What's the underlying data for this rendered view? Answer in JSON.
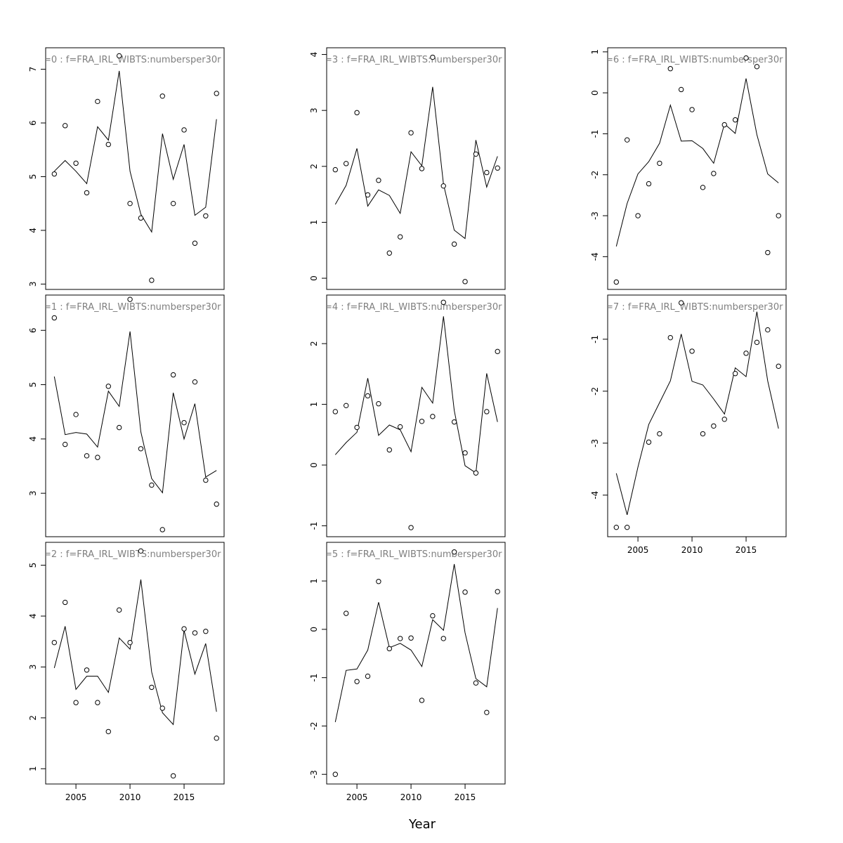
{
  "chart_data": {
    "type": "line",
    "xlabel": "Year",
    "x": [
      2003,
      2004,
      2005,
      2006,
      2007,
      2008,
      2009,
      2010,
      2011,
      2012,
      2013,
      2014,
      2015,
      2016,
      2017,
      2018
    ],
    "x_ticks": [
      2005,
      2010,
      2015
    ],
    "panels": [
      {
        "title": "=0  :  f=FRA_IRL_WIBTS:numbersper30r",
        "yticks": [
          3,
          4,
          5,
          6,
          7
        ],
        "ylim": [
          2.9,
          7.4
        ],
        "fitted": [
          5.1,
          5.3,
          5.1,
          4.87,
          5.93,
          5.68,
          6.97,
          5.1,
          4.3,
          3.97,
          5.8,
          4.95,
          5.6,
          4.28,
          4.43,
          6.07
        ],
        "observed": [
          5.05,
          5.95,
          5.25,
          4.7,
          6.4,
          5.6,
          7.25,
          4.5,
          4.23,
          3.07,
          6.5,
          4.5,
          5.87,
          3.76,
          4.27,
          6.55
        ]
      },
      {
        "title": "=1  :  f=FRA_IRL_WIBTS:numbersper30r",
        "yticks": [
          3,
          4,
          5,
          6
        ],
        "ylim": [
          2.2,
          6.65
        ],
        "fitted": [
          5.15,
          4.08,
          4.12,
          4.09,
          3.85,
          4.88,
          4.6,
          5.98,
          4.13,
          3.27,
          3.01,
          4.85,
          4.0,
          4.65,
          3.3,
          3.42
        ],
        "observed": [
          6.23,
          3.9,
          4.45,
          3.69,
          3.66,
          4.97,
          4.21,
          6.57,
          3.82,
          3.15,
          2.33,
          5.18,
          4.3,
          5.05,
          3.24,
          2.8
        ]
      },
      {
        "title": "=2  :  f=FRA_IRL_WIBTS:numbersper30r",
        "yticks": [
          1,
          2,
          3,
          4,
          5
        ],
        "ylim": [
          0.7,
          5.45
        ],
        "fitted": [
          2.98,
          3.8,
          2.56,
          2.82,
          2.82,
          2.5,
          3.57,
          3.35,
          4.72,
          2.9,
          2.1,
          1.87,
          3.72,
          2.86,
          3.46,
          2.12
        ],
        "observed": [
          3.48,
          4.27,
          2.3,
          2.94,
          2.3,
          1.73,
          4.12,
          3.48,
          5.28,
          2.6,
          2.19,
          0.86,
          3.75,
          3.67,
          3.7,
          1.6
        ]
      },
      {
        "title": "=3  :  f=FRA_IRL_WIBTS:numbersper30r",
        "yticks": [
          0,
          1,
          2,
          3,
          4
        ],
        "ylim": [
          -0.2,
          4.12
        ],
        "fitted": [
          1.32,
          1.66,
          2.32,
          1.29,
          1.58,
          1.48,
          1.16,
          2.26,
          2.01,
          3.42,
          1.68,
          0.86,
          0.71,
          2.47,
          1.63,
          2.18
        ],
        "observed": [
          1.94,
          2.05,
          2.96,
          1.49,
          1.75,
          0.45,
          0.74,
          2.6,
          1.96,
          3.95,
          1.65,
          0.61,
          -0.06,
          2.22,
          1.89,
          1.97
        ]
      },
      {
        "title": "=4  :  f=FRA_IRL_WIBTS:numbersper30r",
        "yticks": [
          -1,
          0,
          1,
          2
        ],
        "ylim": [
          -1.18,
          2.8
        ],
        "fitted": [
          0.17,
          0.37,
          0.54,
          1.43,
          0.49,
          0.66,
          0.58,
          0.22,
          1.28,
          1.02,
          2.45,
          0.9,
          -0.01,
          -0.13,
          1.51,
          0.71
        ],
        "observed": [
          0.88,
          0.98,
          0.62,
          1.14,
          1.01,
          0.25,
          0.63,
          -1.03,
          0.72,
          0.8,
          2.68,
          0.71,
          0.2,
          -0.13,
          0.88,
          1.87
        ]
      },
      {
        "title": "=5  :  f=FRA_IRL_WIBTS:numbersper30r",
        "yticks": [
          -3,
          -2,
          -1,
          0,
          1
        ],
        "ylim": [
          -3.2,
          1.8
        ],
        "fitted": [
          -1.92,
          -0.85,
          -0.82,
          -0.43,
          0.56,
          -0.38,
          -0.29,
          -0.43,
          -0.77,
          0.2,
          -0.02,
          1.35,
          -0.07,
          -1.02,
          -1.19,
          0.44
        ],
        "observed": [
          -3.0,
          0.33,
          -1.08,
          -0.97,
          0.99,
          -0.4,
          -0.19,
          -0.18,
          -1.47,
          0.28,
          -0.19,
          1.6,
          0.77,
          -1.11,
          -1.72,
          0.78
        ]
      },
      {
        "title": "=6  :  f=FRA_IRL_WIBTS:numbersper30r",
        "yticks": [
          -4,
          -3,
          -2,
          -1,
          0,
          1
        ],
        "ylim": [
          -4.8,
          1.1
        ],
        "fitted": [
          -3.75,
          -2.7,
          -1.98,
          -1.68,
          -1.23,
          -0.3,
          -1.18,
          -1.17,
          -1.36,
          -1.72,
          -0.76,
          -0.99,
          0.35,
          -1.02,
          -1.98,
          -2.2
        ],
        "observed": [
          -4.62,
          -1.15,
          -3.0,
          -2.22,
          -1.72,
          0.59,
          0.08,
          -0.41,
          -2.31,
          -1.97,
          -0.78,
          -0.66,
          0.85,
          0.64,
          -3.9,
          -3.0
        ]
      },
      {
        "title": "=7  :  f=FRA_IRL_WIBTS:numbersper30r",
        "yticks": [
          -4,
          -3,
          -2,
          -1
        ],
        "ylim": [
          -4.8,
          -0.15
        ],
        "fitted": [
          -3.58,
          -4.38,
          -3.46,
          -2.64,
          -2.22,
          -1.8,
          -0.9,
          -1.81,
          -1.88,
          -2.15,
          -2.44,
          -1.55,
          -1.72,
          -0.47,
          -1.8,
          -2.72
        ],
        "observed": [
          -4.62,
          -4.62,
          null,
          -2.98,
          -2.82,
          -0.97,
          -0.3,
          -1.23,
          -2.82,
          -2.67,
          -2.54,
          -1.66,
          -1.27,
          -1.06,
          -0.82,
          -1.52
        ]
      }
    ]
  }
}
